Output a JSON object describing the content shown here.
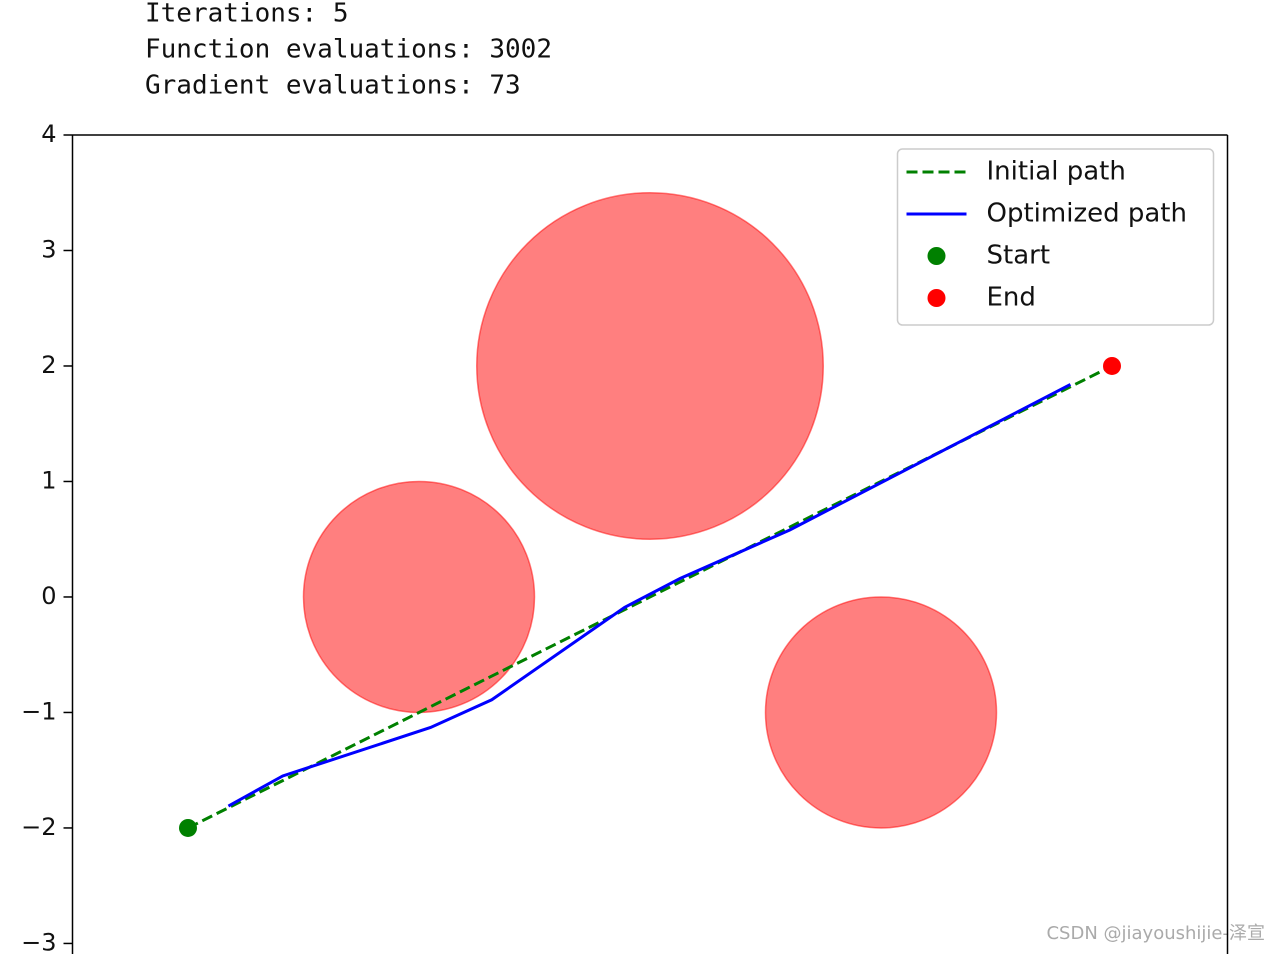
{
  "output_lines": [
    "Iterations: 5",
    "Function evaluations: 3002",
    "Gradient evaluations: 73"
  ],
  "chart_data": {
    "type": "path",
    "xlim": [
      -3,
      7
    ],
    "ylim": [
      -3.1,
      4
    ],
    "yticks": [
      {
        "value": -3,
        "label": "−3"
      },
      {
        "value": -2,
        "label": "−2"
      },
      {
        "value": -1,
        "label": "−1"
      },
      0,
      1,
      2,
      3,
      4
    ],
    "obstacles": [
      {
        "x": 0,
        "y": 0,
        "r": 1
      },
      {
        "x": 2,
        "y": 2,
        "r": 1.5
      },
      {
        "x": 4,
        "y": -1,
        "r": 1
      }
    ],
    "obstacle_color": "#ff0000",
    "series": [
      {
        "name": "Initial path",
        "type": "line",
        "linestyle": "dashed",
        "color": "#008000",
        "x": [
          -2,
          6
        ],
        "values": [
          -2,
          2
        ]
      },
      {
        "name": "Optimized path",
        "type": "line",
        "linestyle": "solid",
        "color": "#0000ff",
        "x": [
          -1.65,
          -1.18,
          0.1,
          0.63,
          1.78,
          2.26,
          3.21,
          5.64
        ],
        "values": [
          -1.81,
          -1.55,
          -1.13,
          -0.89,
          -0.09,
          0.16,
          0.58,
          1.84
        ]
      },
      {
        "name": "Start",
        "type": "scatter",
        "color": "#008000",
        "x": [
          -2
        ],
        "values": [
          -2
        ]
      },
      {
        "name": "End",
        "type": "scatter",
        "color": "#ff0000",
        "x": [
          6
        ],
        "values": [
          2
        ]
      }
    ],
    "legend": "upper right"
  },
  "watermark": "CSDN @jiayoushijie-泽宣"
}
